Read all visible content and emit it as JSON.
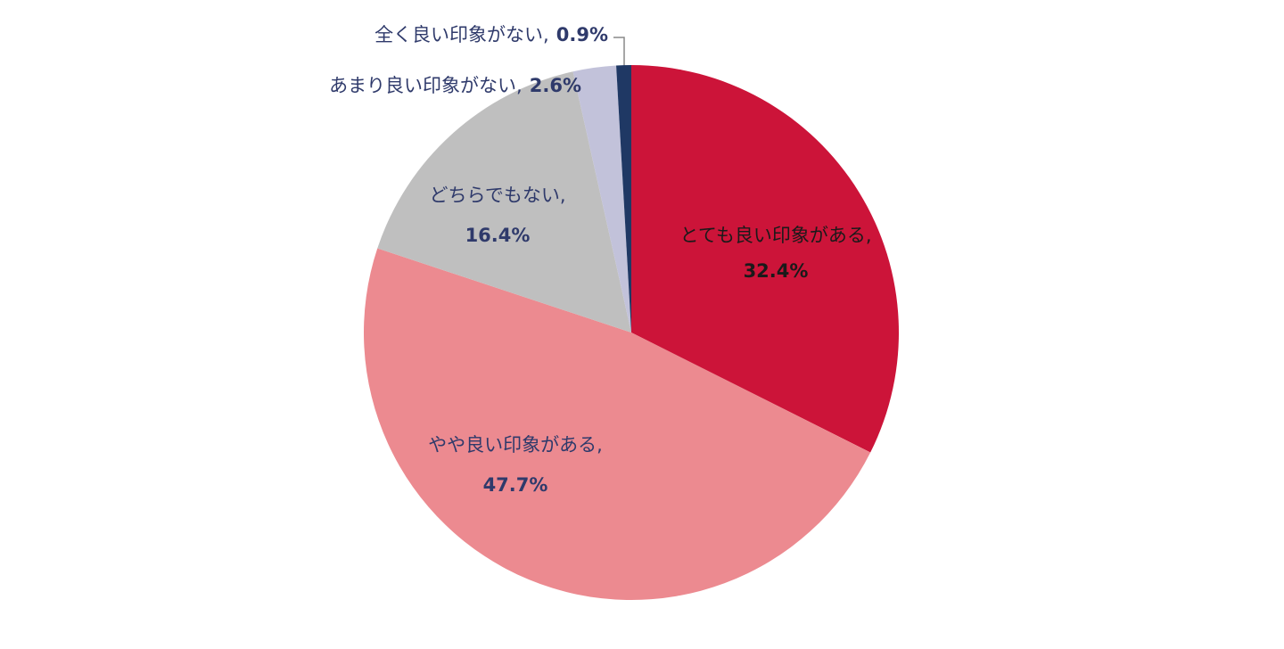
{
  "chart_data": {
    "type": "pie",
    "categories": [
      "とても良い印象がある,",
      "やや良い印象がある,",
      "どちらでもない,",
      "あまり良い印象がない,",
      "全く良い印象がない,"
    ],
    "values": [
      32.4,
      47.7,
      16.4,
      2.6,
      0.9
    ],
    "value_labels": [
      "32.4%",
      "47.7%",
      "16.4%",
      "2.6%",
      "0.9%"
    ],
    "colors": [
      "#cc1439",
      "#ec8a90",
      "#bfbfbf",
      "#c2c2da",
      "#1f3864"
    ]
  }
}
